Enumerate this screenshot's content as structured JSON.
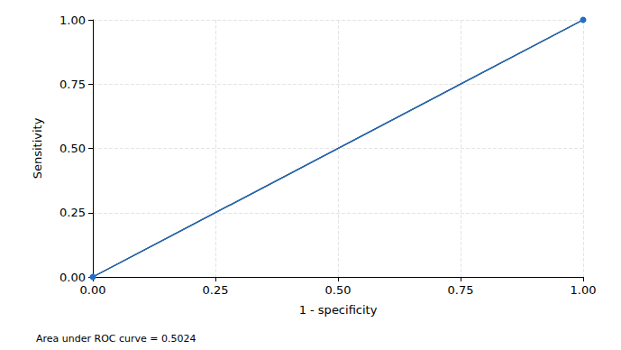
{
  "chart_data": {
    "type": "line",
    "x_label": "1 - specificity",
    "y_label": "Sensitivity",
    "note": "Area under ROC curve = 0.5024",
    "xlim": [
      0,
      1
    ],
    "ylim": [
      0,
      1
    ],
    "xticks": [
      {
        "value": 0,
        "label": "0.00"
      },
      {
        "value": 0.25,
        "label": "0.25"
      },
      {
        "value": 0.5,
        "label": "0.50"
      },
      {
        "value": 0.75,
        "label": "0.75"
      },
      {
        "value": 1,
        "label": "1.00"
      }
    ],
    "yticks": [
      {
        "value": 0,
        "label": "0.00"
      },
      {
        "value": 0.25,
        "label": "0.25"
      },
      {
        "value": 0.5,
        "label": "0.50"
      },
      {
        "value": 0.75,
        "label": "0.75"
      },
      {
        "value": 1,
        "label": "1.00"
      }
    ],
    "grid": true,
    "series": [
      {
        "color": "#000000",
        "marker": "none",
        "line_style": "solid",
        "x": [
          0,
          1
        ],
        "values": [
          0,
          1
        ]
      },
      {
        "color": "#1f6fc6",
        "marker": "circle",
        "line_style": "solid",
        "x": [
          0,
          1
        ],
        "values": [
          0,
          1
        ]
      }
    ]
  }
}
